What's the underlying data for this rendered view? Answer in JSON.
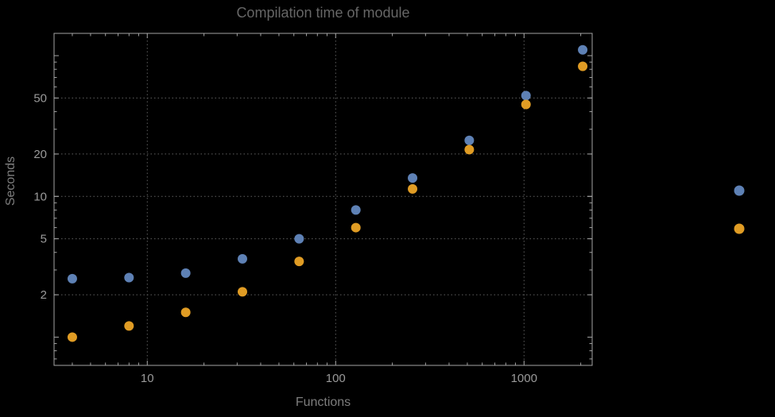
{
  "chart_data": {
    "type": "scatter",
    "title": "Compilation time of module",
    "xlabel": "Functions",
    "ylabel": "Seconds",
    "xscale": "log",
    "yscale": "log",
    "xlim": [
      3.2,
      2300
    ],
    "ylim": [
      0.63,
      144
    ],
    "xticks": [
      10,
      100,
      1000
    ],
    "yticks": [
      2,
      5,
      10,
      20,
      50
    ],
    "grid": "dotted",
    "legend_position": "right",
    "x": [
      4,
      8,
      16,
      32,
      64,
      128,
      256,
      512,
      1024,
      2048
    ],
    "series": [
      {
        "name": "series-1-blue",
        "color": "#5e81b5",
        "values": [
          2.6,
          2.65,
          2.85,
          3.6,
          5.0,
          8.0,
          13.5,
          25,
          52,
          110
        ]
      },
      {
        "name": "series-2-orange",
        "color": "#e09c24",
        "values": [
          1.0,
          1.2,
          1.5,
          2.1,
          3.45,
          6.0,
          11.3,
          21.5,
          45,
          84
        ]
      }
    ],
    "legend_items": [
      {
        "name": "series-1-blue",
        "color": "#5e81b5",
        "label": ""
      },
      {
        "name": "series-2-orange",
        "color": "#e09c24",
        "label": ""
      }
    ]
  },
  "colors": {
    "background": "#000000",
    "frame": "#a3a3a3",
    "grid": "#5f5f5f",
    "tick_label": "#9a9a9a",
    "title": "#666666",
    "axis_label": "#7d7d7d"
  }
}
